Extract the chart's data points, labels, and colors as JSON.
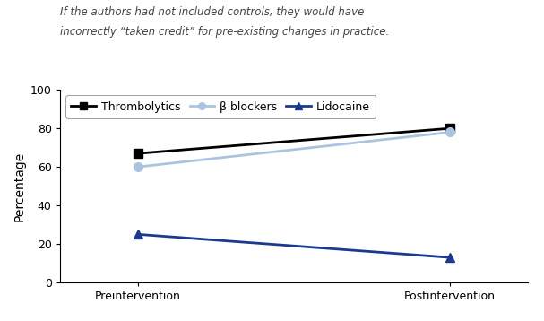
{
  "series": [
    {
      "label": "Thrombolytics",
      "pre": 67,
      "post": 80,
      "color": "#000000",
      "marker": "s",
      "linewidth": 2.0,
      "markersize": 7,
      "linestyle": "-"
    },
    {
      "label": "β blockers",
      "pre": 60,
      "post": 78,
      "color": "#aac4e0",
      "marker": "o",
      "linewidth": 2.0,
      "markersize": 7,
      "linestyle": "-"
    },
    {
      "label": "Lidocaine",
      "pre": 25,
      "post": 13,
      "color": "#1a3a8f",
      "marker": "^",
      "linewidth": 2.0,
      "markersize": 7,
      "linestyle": "-"
    }
  ],
  "x_labels": [
    "Preintervention",
    "Postintervention"
  ],
  "x_values": [
    0,
    1
  ],
  "ylabel": "Percentage",
  "ylim": [
    0,
    100
  ],
  "yticks": [
    0,
    20,
    40,
    60,
    80,
    100
  ],
  "annotation_line1": "If the authors had not included controls, they would have",
  "annotation_line2": "incorrectly “taken credit” for pre-existing changes in practice.",
  "annotation_fontsize": 8.5,
  "background_color": "#ffffff",
  "legend_fontsize": 9,
  "ylabel_fontsize": 10,
  "tick_fontsize": 9
}
